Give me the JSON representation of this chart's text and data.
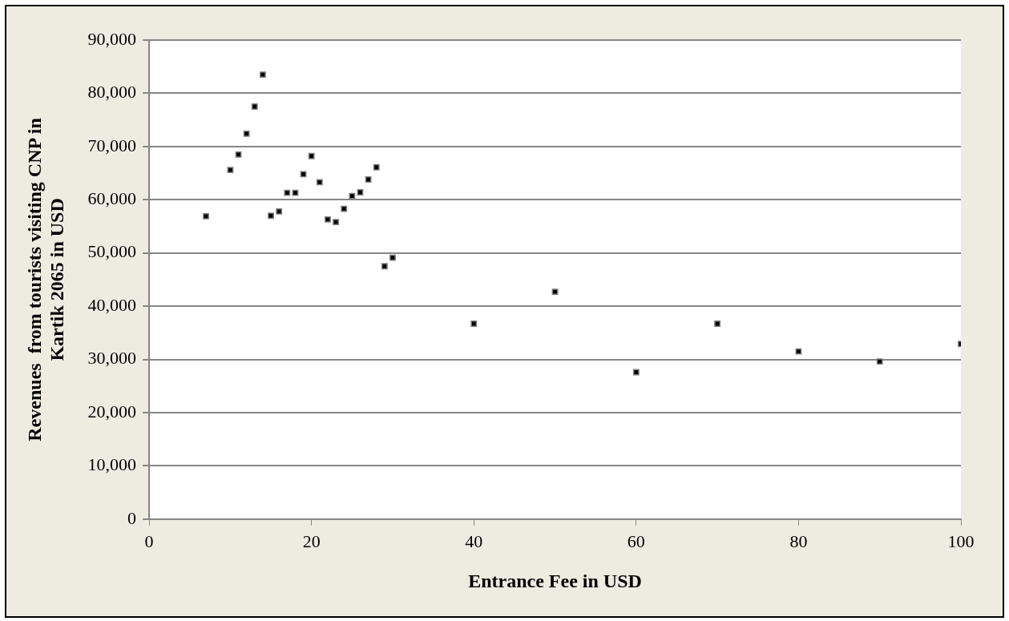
{
  "chart_data": {
    "type": "scatter",
    "xlabel": "Entrance Fee in USD",
    "ylabel": "Revenues  from tourists visiting CNP in Kartik 2065 in USD",
    "x": [
      7,
      10,
      11,
      12,
      13,
      14,
      15,
      16,
      17,
      18,
      19,
      20,
      21,
      22,
      23,
      24,
      25,
      26,
      27,
      28,
      29,
      30,
      40,
      50,
      60,
      70,
      80,
      90,
      100
    ],
    "series": [
      {
        "color": "#000000",
        "values": [
          56900,
          65600,
          68500,
          72400,
          77500,
          83500,
          57000,
          57800,
          61300,
          61300,
          64800,
          68200,
          63300,
          56300,
          55800,
          58300,
          60700,
          61400,
          63800,
          66100,
          47500,
          49100,
          36700,
          42700,
          27600,
          36700,
          31500,
          29600,
          32900
        ]
      }
    ],
    "xlim": [
      0,
      100
    ],
    "xticks": [
      0,
      20,
      40,
      60,
      80,
      100
    ],
    "ylim": [
      0,
      90000
    ],
    "yticks": [
      {
        "value": 0,
        "label": "0"
      },
      {
        "value": 10000,
        "label": "10,000"
      },
      {
        "value": 20000,
        "label": "20,000"
      },
      {
        "value": 30000,
        "label": "30,000"
      },
      {
        "value": 40000,
        "label": "40,000"
      },
      {
        "value": 50000,
        "label": "50,000"
      },
      {
        "value": 60000,
        "label": "60,000"
      },
      {
        "value": 70000,
        "label": "70,000"
      },
      {
        "value": 80000,
        "label": "80,000"
      },
      {
        "value": 90000,
        "label": "90,000"
      }
    ],
    "grid": "y",
    "marker": "square",
    "legend": false
  }
}
